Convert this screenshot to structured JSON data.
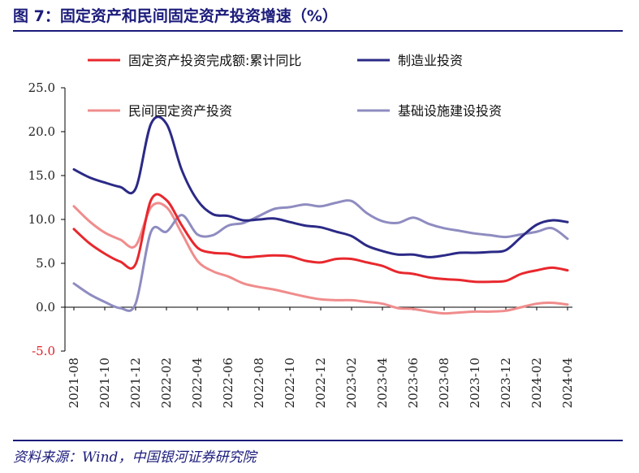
{
  "title": "图 7：固定资产和民间固定资产投资增速（%）",
  "source": "资料来源：Wind，中国银河证券研究院",
  "chart_data": {
    "type": "line",
    "title": "图 7：固定资产和民间固定资产投资增速（%）",
    "xlabel": "",
    "ylabel": "",
    "ylim": [
      -5,
      25
    ],
    "yticks": [
      "25.0",
      "20.0",
      "15.0",
      "10.0",
      "5.0",
      "0.0",
      "-5.0"
    ],
    "grid": false,
    "legend_position": "top",
    "x": [
      "2021-08",
      "2021-09",
      "2021-10",
      "2021-11",
      "2021-12",
      "2022-01",
      "2022-02",
      "2022-03",
      "2022-04",
      "2022-05",
      "2022-06",
      "2022-07",
      "2022-08",
      "2022-09",
      "2022-10",
      "2022-11",
      "2022-12",
      "2023-01",
      "2023-02",
      "2023-03",
      "2023-04",
      "2023-05",
      "2023-06",
      "2023-07",
      "2023-08",
      "2023-09",
      "2023-10",
      "2023-11",
      "2023-12",
      "2024-01",
      "2024-02",
      "2024-03",
      "2024-04"
    ],
    "xticks": [
      "2021-08",
      "2021-10",
      "2021-12",
      "2022-02",
      "2022-04",
      "2022-06",
      "2022-08",
      "2022-10",
      "2022-12",
      "2023-02",
      "2023-04",
      "2023-06",
      "2023-08",
      "2023-10",
      "2023-12",
      "2024-02",
      "2024-04"
    ],
    "series": [
      {
        "name": "固定资产投资完成额:累计同比",
        "color": "#e8282d",
        "values": [
          8.9,
          7.3,
          6.1,
          5.2,
          4.9,
          12.2,
          12.2,
          9.3,
          6.8,
          6.2,
          6.1,
          5.7,
          5.8,
          5.9,
          5.8,
          5.3,
          5.1,
          5.5,
          5.5,
          5.1,
          4.7,
          4.0,
          3.8,
          3.4,
          3.2,
          3.1,
          2.9,
          2.9,
          3.0,
          3.8,
          4.2,
          4.5,
          4.2
        ]
      },
      {
        "name": "制造业投资",
        "color": "#2b2a86",
        "values": [
          15.7,
          14.8,
          14.2,
          13.7,
          13.5,
          20.9,
          20.9,
          15.6,
          12.2,
          10.6,
          10.4,
          9.9,
          10.0,
          10.1,
          9.7,
          9.3,
          9.1,
          8.6,
          8.1,
          7.0,
          6.4,
          6.0,
          6.0,
          5.7,
          5.9,
          6.2,
          6.2,
          6.3,
          6.5,
          8.0,
          9.4,
          9.9,
          9.7
        ]
      },
      {
        "name": "民间固定资产投资",
        "color": "#f08c8c",
        "values": [
          11.5,
          9.8,
          8.5,
          7.7,
          7.0,
          11.4,
          11.4,
          8.4,
          5.3,
          4.1,
          3.5,
          2.7,
          2.3,
          2.0,
          1.6,
          1.2,
          0.9,
          0.8,
          0.8,
          0.6,
          0.4,
          -0.1,
          -0.2,
          -0.5,
          -0.7,
          -0.6,
          -0.5,
          -0.5,
          -0.4,
          -0.0,
          0.4,
          0.5,
          0.3
        ]
      },
      {
        "name": "基础设施建设投资",
        "color": "#8e8cc0",
        "values": [
          2.7,
          1.5,
          0.6,
          -0.1,
          0.4,
          8.6,
          8.6,
          10.5,
          8.3,
          8.2,
          9.3,
          9.6,
          10.4,
          11.2,
          11.4,
          11.7,
          11.5,
          11.9,
          12.1,
          10.7,
          9.8,
          9.6,
          10.2,
          9.5,
          9.0,
          8.7,
          8.4,
          8.2,
          8.0,
          8.3,
          8.6,
          9.0,
          7.8
        ]
      }
    ]
  }
}
